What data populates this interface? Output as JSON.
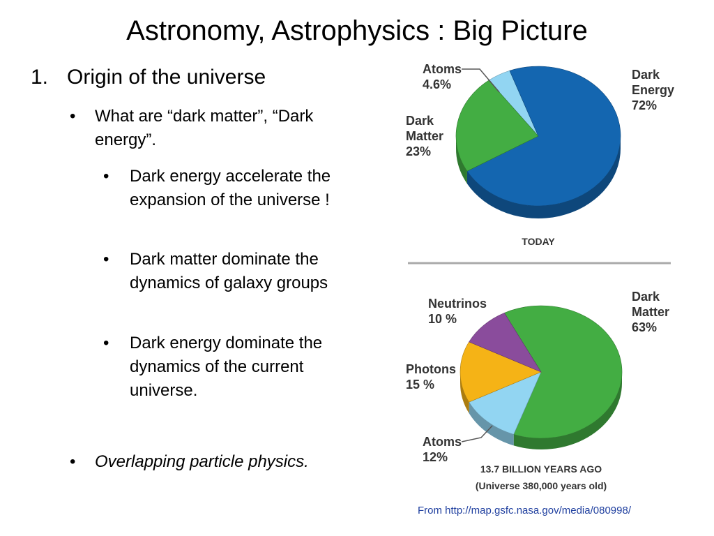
{
  "slide": {
    "title": "Astronomy, Astrophysics : Big Picture",
    "number": "1.",
    "heading": "Origin of the universe",
    "bullets": [
      {
        "text": "What are “dark matter”, “Dark energy”.",
        "subbullets": [
          "Dark energy accelerate the expansion of the universe !",
          "Dark matter dominate the dynamics of galaxy groups",
          "Dark energy dominate the dynamics of the current universe."
        ]
      },
      {
        "text": "Overlapping particle physics."
      }
    ],
    "source": "From http://map.gsfc.nasa.gov/media/080998/"
  },
  "chart_data": [
    {
      "type": "pie",
      "caption": "TODAY",
      "categories": [
        "Atoms",
        "Dark Energy",
        "Dark Matter"
      ],
      "values": [
        4.6,
        72,
        23
      ],
      "value_labels": [
        "4.6%",
        "72%",
        "23%"
      ],
      "colors": [
        "#92d5f2",
        "#1466b0",
        "#43ad43"
      ]
    },
    {
      "type": "pie",
      "caption": "13.7 BILLION YEARS AGO",
      "subcaption": "(Universe 380,000 years old)",
      "categories": [
        "Dark Matter",
        "Atoms",
        "Photons",
        "Neutrinos"
      ],
      "values": [
        63,
        12,
        15,
        10
      ],
      "value_labels": [
        "63%",
        "12%",
        "15 %",
        "10 %"
      ],
      "colors": [
        "#43ad43",
        "#92d5f2",
        "#f5b316",
        "#8a4c9c"
      ]
    }
  ]
}
